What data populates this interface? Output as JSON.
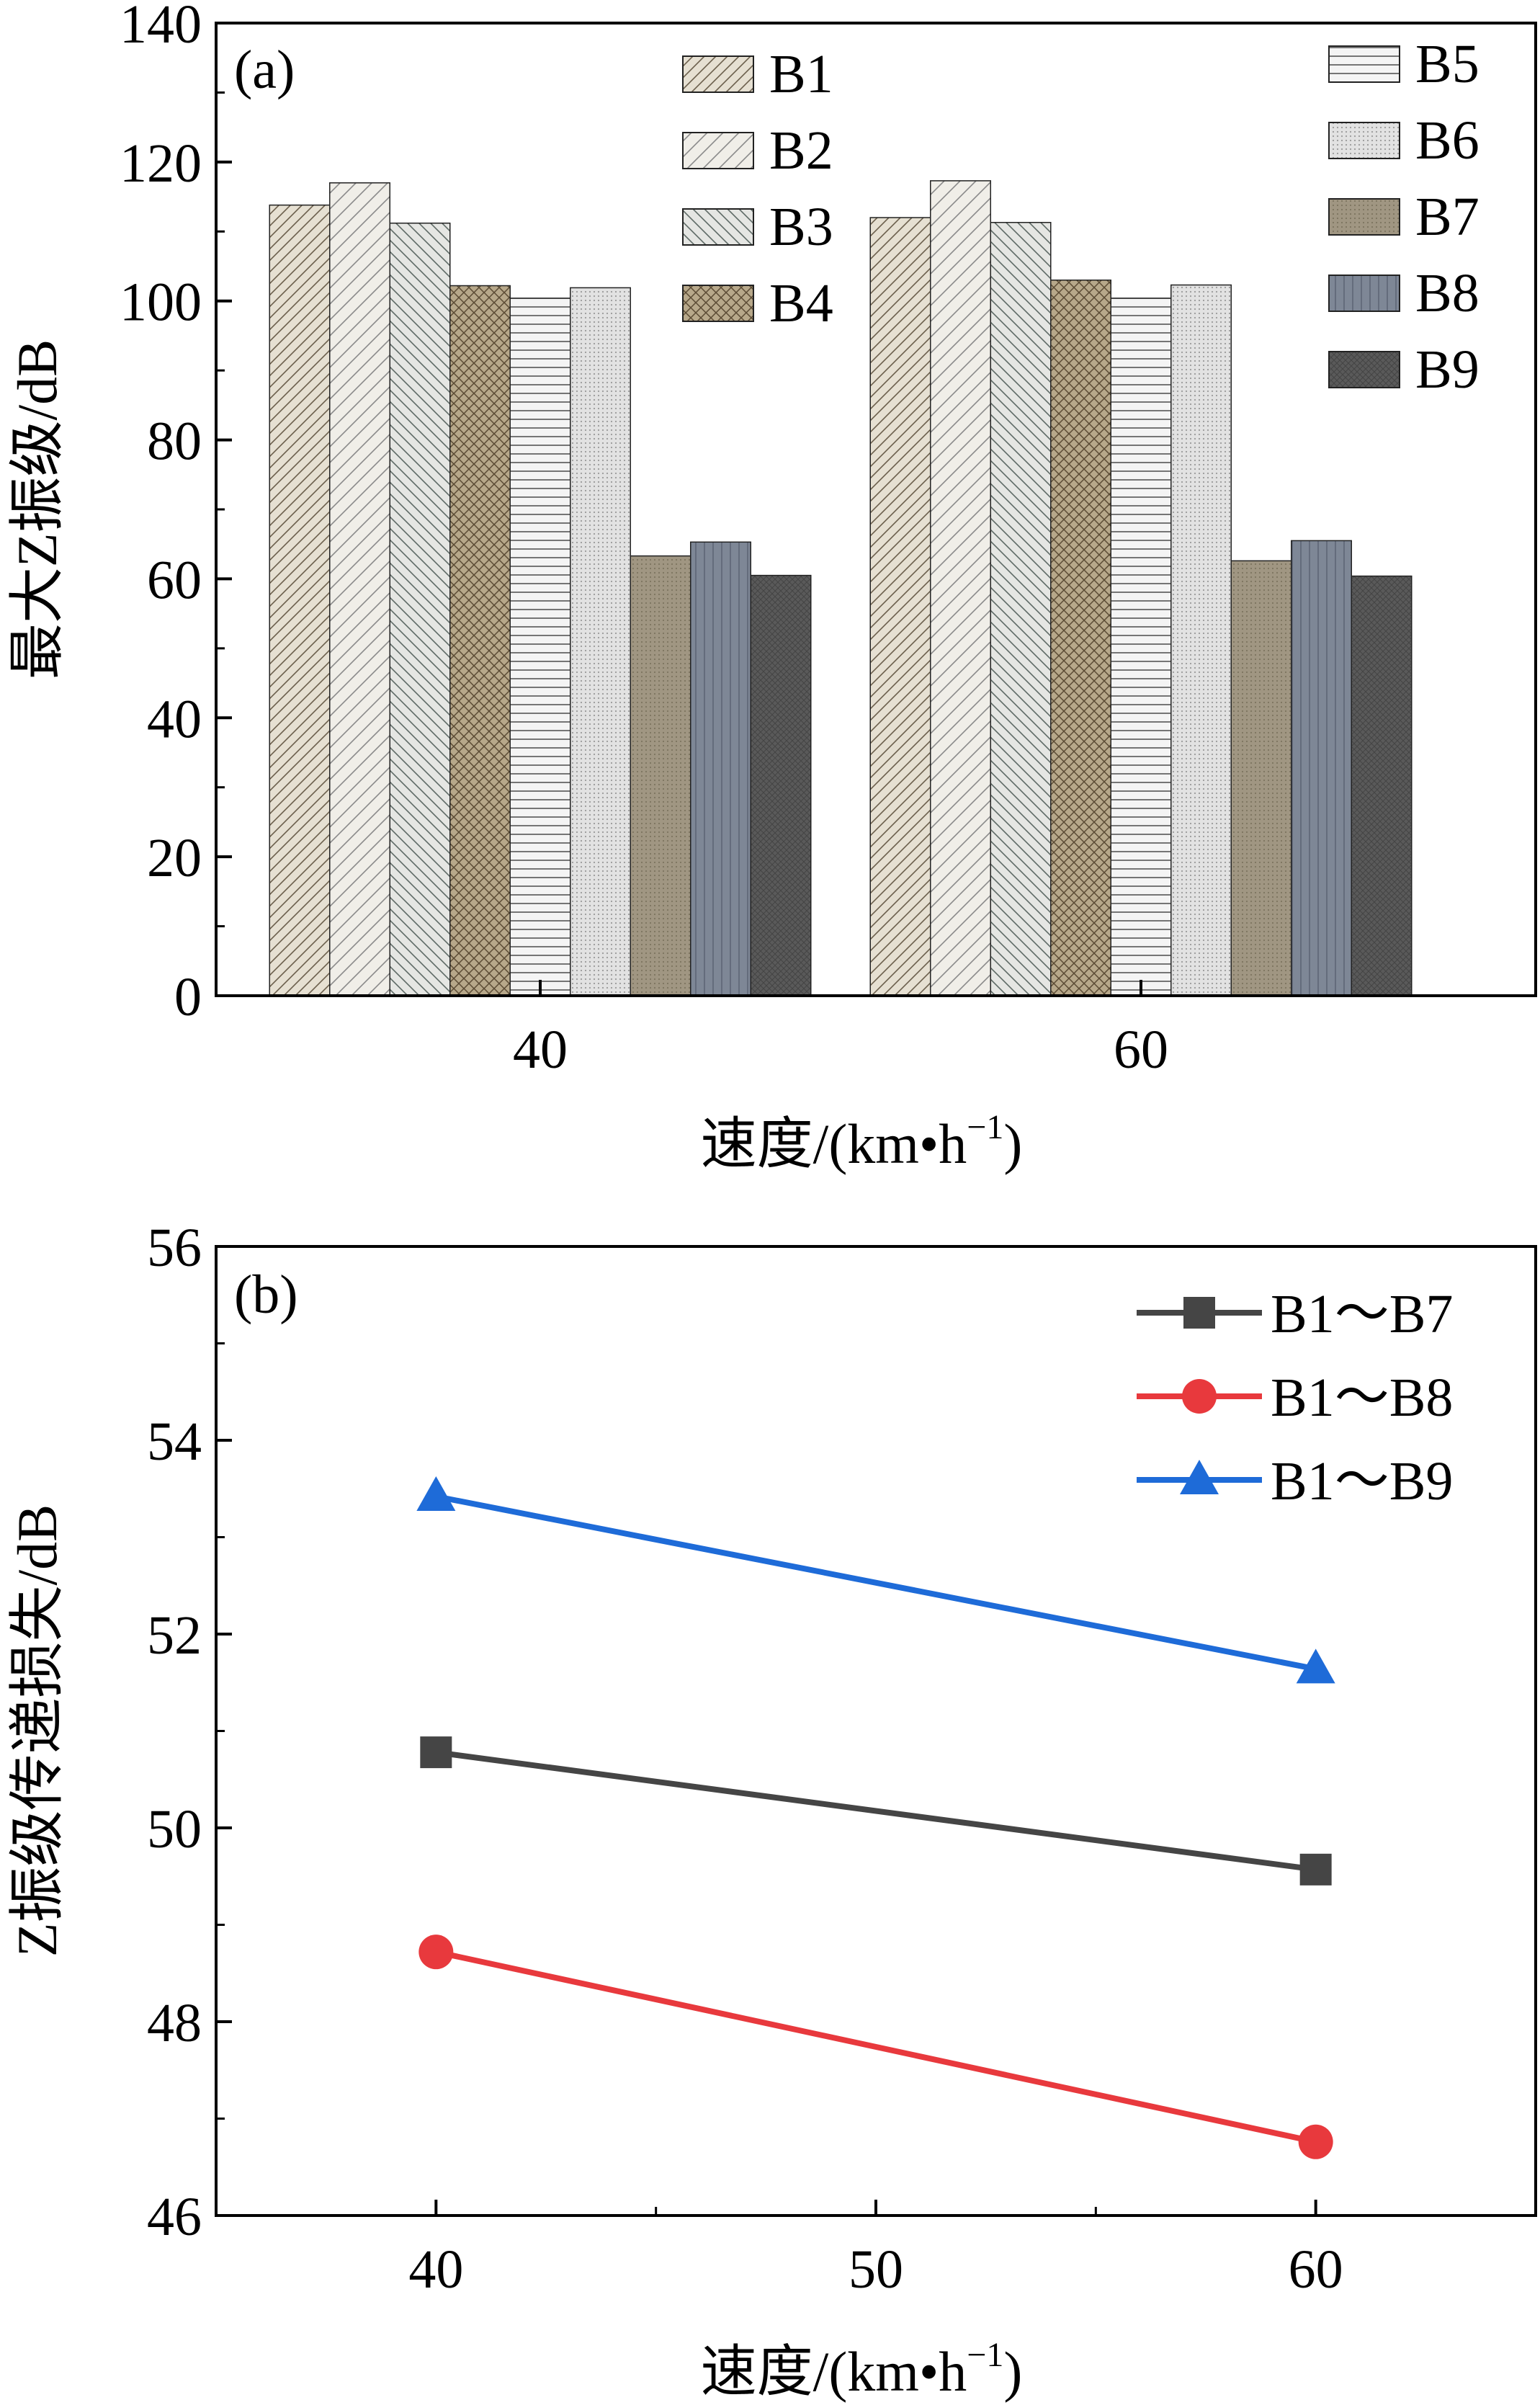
{
  "chart_data": [
    {
      "panel_label": "(a)",
      "type": "bar",
      "categories": [
        "40",
        "60"
      ],
      "series": [
        {
          "name": "B1",
          "values": [
            113.8,
            112.0
          ],
          "color": "#e6e0d2"
        },
        {
          "name": "B2",
          "values": [
            117.0,
            117.3
          ],
          "color": "#f0eee8"
        },
        {
          "name": "B3",
          "values": [
            111.2,
            111.3
          ],
          "color": "#e5e6e3"
        },
        {
          "name": "B4",
          "values": [
            102.2,
            103.0
          ],
          "color": "#b7a88a"
        },
        {
          "name": "B5",
          "values": [
            100.4,
            100.4
          ],
          "color": "#f4f4f4"
        },
        {
          "name": "B6",
          "values": [
            101.9,
            102.3
          ],
          "color": "#dcdcdc"
        },
        {
          "name": "B7",
          "values": [
            63.3,
            62.6
          ],
          "color": "#a09682"
        },
        {
          "name": "B8",
          "values": [
            65.3,
            65.5
          ],
          "color": "#7e8796"
        },
        {
          "name": "B9",
          "values": [
            60.5,
            60.4
          ],
          "color": "#5a5a5a"
        }
      ],
      "ylabel": "最大Z振级/dB",
      "xlabel_main": "速度/(km•h",
      "xlabel_sup": "−1",
      "xlabel_end": ")",
      "ylim": [
        0,
        140
      ],
      "yticks": [
        "0",
        "20",
        "40",
        "60",
        "80",
        "100",
        "120",
        "140"
      ],
      "legend_placement": "top-center and top-right, two columns"
    },
    {
      "panel_label": "(b)",
      "type": "line",
      "x": [
        40,
        60
      ],
      "series": [
        {
          "name": "B1～B7",
          "values": [
            50.78,
            49.57
          ],
          "color": "#454545",
          "marker": "square"
        },
        {
          "name": "B1～B8",
          "values": [
            48.72,
            46.76
          ],
          "color": "#e8393d",
          "marker": "circle"
        },
        {
          "name": "B1～B9",
          "values": [
            53.42,
            51.64
          ],
          "color": "#1e6bd8",
          "marker": "triangle"
        }
      ],
      "ylabel": "Z振级传递损失/dB",
      "xlabel_main": "速度/(km•h",
      "xlabel_sup": "−1",
      "xlabel_end": ")",
      "xlim": [
        35,
        65
      ],
      "ylim": [
        46,
        56
      ],
      "xticks": [
        "40",
        "50",
        "60"
      ],
      "yticks": [
        "46",
        "48",
        "50",
        "52",
        "54",
        "56"
      ],
      "legend_placement": "top-right"
    }
  ]
}
